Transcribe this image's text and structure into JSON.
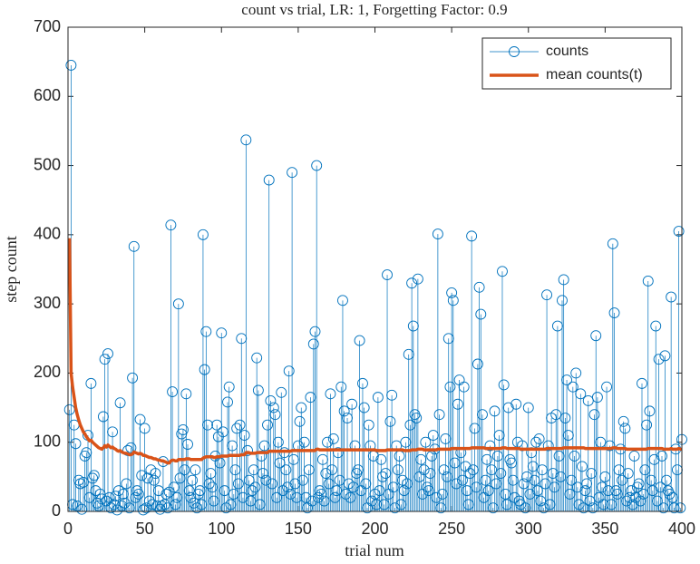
{
  "chart_data": {
    "type": "stem",
    "title": "count vs trial, LR: 1, Forgetting Factor: 0.9",
    "xlabel": "trial num",
    "ylabel": "step count",
    "xlim": [
      0,
      400
    ],
    "xticks": [
      0,
      50,
      100,
      150,
      200,
      250,
      300,
      350,
      400
    ],
    "ylim": [
      0,
      700
    ],
    "yticks": [
      0,
      100,
      200,
      300,
      400,
      500,
      600,
      700
    ],
    "legend": "northeast",
    "x": [
      1,
      2,
      3,
      4,
      5,
      6,
      7,
      8,
      9,
      10,
      11,
      12,
      13,
      14,
      15,
      16,
      17,
      18,
      19,
      20,
      21,
      22,
      23,
      24,
      25,
      26,
      27,
      28,
      29,
      30,
      31,
      32,
      33,
      34,
      35,
      36,
      37,
      38,
      39,
      40,
      41,
      42,
      43,
      44,
      45,
      46,
      47,
      48,
      49,
      50,
      51,
      52,
      53,
      54,
      55,
      56,
      57,
      58,
      59,
      60,
      61,
      62,
      63,
      64,
      65,
      66,
      67,
      68,
      69,
      70,
      71,
      72,
      73,
      74,
      75,
      76,
      77,
      78,
      79,
      80,
      81,
      82,
      83,
      84,
      85,
      86,
      87,
      88,
      89,
      90,
      91,
      92,
      93,
      94,
      95,
      96,
      97,
      98,
      99,
      100,
      101,
      102,
      103,
      104,
      105,
      106,
      107,
      108,
      109,
      110,
      111,
      112,
      113,
      114,
      115,
      116,
      117,
      118,
      119,
      120,
      121,
      122,
      123,
      124,
      125,
      126,
      127,
      128,
      129,
      130,
      131,
      132,
      133,
      134,
      135,
      136,
      137,
      138,
      139,
      140,
      141,
      142,
      143,
      144,
      145,
      146,
      147,
      148,
      149,
      150,
      151,
      152,
      153,
      154,
      155,
      156,
      157,
      158,
      159,
      160,
      161,
      162,
      163,
      164,
      165,
      166,
      167,
      168,
      169,
      170,
      171,
      172,
      173,
      174,
      175,
      176,
      177,
      178,
      179,
      180,
      181,
      182,
      183,
      184,
      185,
      186,
      187,
      188,
      189,
      190,
      191,
      192,
      193,
      194,
      195,
      196,
      197,
      198,
      199,
      200,
      201,
      202,
      203,
      204,
      205,
      206,
      207,
      208,
      209,
      210,
      211,
      212,
      213,
      214,
      215,
      216,
      217,
      218,
      219,
      220,
      221,
      222,
      223,
      224,
      225,
      226,
      227,
      228,
      229,
      230,
      231,
      232,
      233,
      234,
      235,
      236,
      237,
      238,
      239,
      240,
      241,
      242,
      243,
      244,
      245,
      246,
      247,
      248,
      249,
      250,
      251,
      252,
      253,
      254,
      255,
      256,
      257,
      258,
      259,
      260,
      261,
      262,
      263,
      264,
      265,
      266,
      267,
      268,
      269,
      270,
      271,
      272,
      273,
      274,
      275,
      276,
      277,
      278,
      279,
      280,
      281,
      282,
      283,
      284,
      285,
      286,
      287,
      288,
      289,
      290,
      291,
      292,
      293,
      294,
      295,
      296,
      297,
      298,
      299,
      300,
      301,
      302,
      303,
      304,
      305,
      306,
      307,
      308,
      309,
      310,
      311,
      312,
      313,
      314,
      315,
      316,
      317,
      318,
      319,
      320,
      321,
      322,
      323,
      324,
      325,
      326,
      327,
      328,
      329,
      330,
      331,
      332,
      333,
      334,
      335,
      336,
      337,
      338,
      339,
      340,
      341,
      342,
      343,
      344,
      345,
      346,
      347,
      348,
      349,
      350,
      351,
      352,
      353,
      354,
      355,
      356,
      357,
      358,
      359,
      360,
      361,
      362,
      363,
      364,
      365,
      366,
      367,
      368,
      369,
      370,
      371,
      372,
      373,
      374,
      375,
      376,
      377,
      378,
      379,
      380,
      381,
      382,
      383,
      384,
      385,
      386,
      387,
      388,
      389,
      390,
      391,
      392,
      393,
      394,
      395,
      396,
      397,
      398,
      399,
      400
    ],
    "series": [
      {
        "name": "counts",
        "type": "stem",
        "color": "#0072BD",
        "values": [
          147,
          645,
          10,
          125,
          98,
          8,
          45,
          40,
          3,
          42,
          80,
          85,
          110,
          20,
          185,
          48,
          52,
          30,
          12,
          8,
          25,
          18,
          137,
          220,
          15,
          228,
          20,
          5,
          115,
          10,
          22,
          2,
          30,
          157,
          8,
          25,
          12,
          40,
          88,
          5,
          92,
          193,
          383,
          20,
          30,
          25,
          133,
          52,
          2,
          120,
          5,
          48,
          15,
          60,
          10,
          45,
          55,
          8,
          30,
          3,
          8,
          72,
          10,
          25,
          5,
          28,
          414,
          173,
          35,
          10,
          20,
          300,
          48,
          112,
          118,
          60,
          170,
          97,
          30,
          20,
          45,
          12,
          60,
          5,
          25,
          30,
          10,
          400,
          205,
          260,
          125,
          40,
          55,
          35,
          15,
          80,
          125,
          108,
          70,
          258,
          115,
          30,
          5,
          158,
          180,
          10,
          95,
          25,
          60,
          120,
          40,
          125,
          250,
          20,
          110,
          537,
          88,
          45,
          15,
          30,
          60,
          35,
          222,
          175,
          10,
          80,
          55,
          95,
          45,
          125,
          479,
          160,
          40,
          150,
          140,
          20,
          100,
          70,
          172,
          30,
          85,
          60,
          35,
          203,
          25,
          490,
          75,
          40,
          20,
          95,
          130,
          150,
          45,
          100,
          20,
          5,
          60,
          165,
          15,
          242,
          260,
          500,
          20,
          30,
          25,
          75,
          15,
          55,
          100,
          40,
          170,
          60,
          105,
          20,
          30,
          85,
          45,
          180,
          305,
          145,
          25,
          135,
          40,
          20,
          155,
          35,
          95,
          55,
          60,
          247,
          30,
          185,
          150,
          40,
          5,
          125,
          95,
          15,
          80,
          25,
          10,
          165,
          30,
          75,
          50,
          10,
          55,
          342,
          25,
          130,
          168,
          35,
          5,
          95,
          60,
          80,
          10,
          45,
          30,
          100,
          40,
          227,
          125,
          330,
          268,
          140,
          135,
          336,
          50,
          75,
          25,
          60,
          100,
          35,
          30,
          55,
          80,
          110,
          90,
          20,
          401,
          140,
          5,
          25,
          60,
          105,
          50,
          250,
          180,
          316,
          305,
          70,
          40,
          155,
          190,
          85,
          45,
          180,
          65,
          30,
          10,
          55,
          398,
          60,
          120,
          35,
          213,
          324,
          285,
          140,
          20,
          45,
          75,
          30,
          95,
          60,
          5,
          145,
          40,
          80,
          110,
          55,
          347,
          183,
          25,
          10,
          150,
          75,
          70,
          45,
          20,
          155,
          100,
          15,
          10,
          95,
          40,
          5,
          50,
          150,
          25,
          85,
          65,
          45,
          100,
          30,
          105,
          15,
          60,
          5,
          40,
          313,
          95,
          10,
          135,
          55,
          35,
          140,
          268,
          80,
          50,
          305,
          335,
          135,
          190,
          110,
          25,
          45,
          180,
          80,
          200,
          35,
          10,
          170,
          65,
          5,
          30,
          40,
          160,
          15,
          55,
          5,
          140,
          254,
          165,
          20,
          100,
          35,
          10,
          50,
          180,
          30,
          95,
          10,
          387,
          287,
          30,
          25,
          60,
          90,
          45,
          130,
          120,
          15,
          55,
          20,
          30,
          10,
          80,
          20,
          35,
          40,
          15,
          185,
          25,
          60,
          125,
          333,
          145,
          45,
          30,
          75,
          268,
          15,
          220,
          35,
          80,
          5,
          225,
          45,
          30,
          25,
          310,
          20,
          5,
          90,
          60,
          405,
          5,
          104
        ]
      },
      {
        "name": "mean counts(t)",
        "type": "line",
        "color": "#D95319",
        "values": [
          395,
          200,
          180,
          165,
          150,
          140,
          132,
          125,
          120,
          115,
          112,
          108,
          105,
          102,
          103,
          100,
          98,
          96,
          94,
          92,
          91,
          90,
          92,
          95,
          93,
          96,
          94,
          92,
          93,
          91,
          90,
          88,
          87,
          88,
          86,
          85,
          84,
          84,
          83,
          82,
          82,
          83,
          86,
          85,
          84,
          83,
          84,
          83,
          81,
          81,
          80,
          79,
          78,
          78,
          77,
          76,
          76,
          75,
          74,
          74,
          73,
          73,
          72,
          71,
          70,
          70,
          73,
          74,
          74,
          73,
          73,
          75,
          75,
          75,
          75,
          75,
          76,
          76,
          76,
          75,
          75,
          75,
          75,
          75,
          75,
          75,
          75,
          77,
          78,
          79,
          79,
          79,
          79,
          79,
          78,
          78,
          79,
          79,
          79,
          80,
          80,
          80,
          80,
          80,
          81,
          81,
          81,
          81,
          81,
          81,
          81,
          81,
          82,
          82,
          82,
          85,
          85,
          85,
          84,
          84,
          84,
          84,
          85,
          85,
          85,
          85,
          85,
          85,
          85,
          85,
          87,
          87,
          87,
          87,
          87,
          87,
          87,
          87,
          87,
          87,
          87,
          87,
          87,
          87,
          87,
          88,
          88,
          88,
          88,
          88,
          88,
          88,
          88,
          88,
          88,
          88,
          88,
          88,
          88,
          88,
          88,
          90,
          90,
          89,
          89,
          89,
          89,
          89,
          89,
          89,
          89,
          89,
          89,
          89,
          89,
          89,
          89,
          89,
          89,
          89,
          89,
          89,
          89,
          89,
          89,
          89,
          89,
          89,
          89,
          89,
          89,
          89,
          89,
          89,
          89,
          89,
          89,
          89,
          89,
          89,
          88,
          88,
          88,
          88,
          88,
          88,
          88,
          89,
          89,
          89,
          89,
          89,
          89,
          89,
          89,
          89,
          89,
          89,
          88,
          88,
          88,
          88,
          88,
          89,
          89,
          89,
          89,
          90,
          90,
          90,
          90,
          89,
          89,
          89,
          89,
          89,
          89,
          89,
          89,
          89,
          90,
          90,
          90,
          90,
          90,
          90,
          90,
          90,
          90,
          91,
          91,
          91,
          91,
          91,
          91,
          91,
          91,
          91,
          91,
          91,
          91,
          91,
          92,
          92,
          92,
          92,
          92,
          92,
          92,
          92,
          92,
          91,
          91,
          91,
          91,
          91,
          91,
          91,
          91,
          91,
          91,
          91,
          92,
          92,
          92,
          91,
          91,
          91,
          91,
          91,
          91,
          91,
          91,
          91,
          90,
          90,
          90,
          90,
          90,
          90,
          90,
          90,
          90,
          90,
          90,
          90,
          90,
          90,
          90,
          90,
          90,
          91,
          91,
          91,
          91,
          91,
          91,
          91,
          91,
          91,
          91,
          91,
          92,
          92,
          92,
          92,
          92,
          92,
          92,
          92,
          92,
          92,
          92,
          92,
          92,
          92,
          91,
          91,
          91,
          91,
          91,
          91,
          91,
          91,
          91,
          91,
          91,
          91,
          91,
          91,
          91,
          91,
          91,
          91,
          92,
          92,
          92,
          91,
          91,
          91,
          91,
          91,
          91,
          90,
          90,
          90,
          90,
          90,
          90,
          90,
          90,
          90,
          90,
          90,
          90,
          90,
          90,
          91,
          91,
          91,
          91,
          91,
          91,
          91,
          91,
          91,
          91,
          90,
          90,
          90,
          90,
          90,
          91,
          90,
          90,
          90,
          90,
          91,
          90,
          90
        ]
      }
    ]
  }
}
